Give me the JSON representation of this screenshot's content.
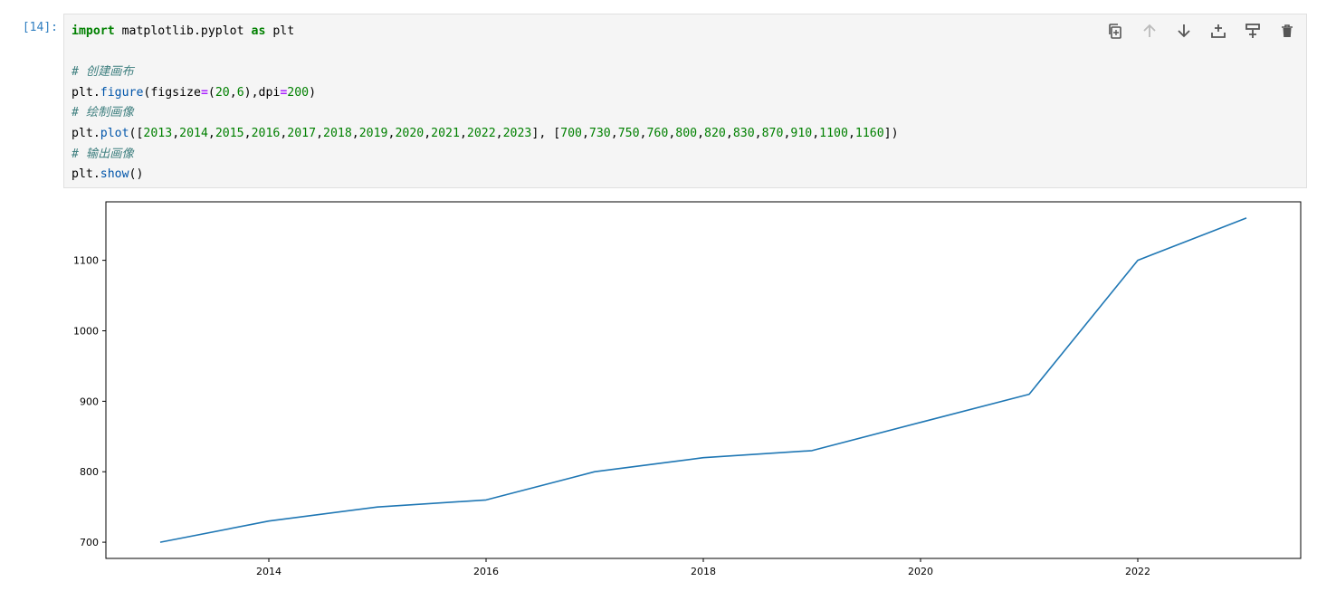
{
  "cell": {
    "prompt": "[14]:",
    "code_lines": [
      [
        {
          "t": "import",
          "c": "kw"
        },
        {
          "t": " matplotlib.pyplot "
        },
        {
          "t": "as",
          "c": "kw"
        },
        {
          "t": " plt"
        }
      ],
      [],
      [
        {
          "t": "# 创建画布",
          "c": "cm"
        }
      ],
      [
        {
          "t": "plt."
        },
        {
          "t": "figure",
          "c": "fn"
        },
        {
          "t": "(figsize"
        },
        {
          "t": "=",
          "c": "op"
        },
        {
          "t": "("
        },
        {
          "t": "20",
          "c": "num"
        },
        {
          "t": ","
        },
        {
          "t": "6",
          "c": "num"
        },
        {
          "t": "),dpi"
        },
        {
          "t": "=",
          "c": "op"
        },
        {
          "t": "200",
          "c": "num"
        },
        {
          "t": ")"
        }
      ],
      [
        {
          "t": "# 绘制画像",
          "c": "cm"
        }
      ],
      [
        {
          "t": "plt."
        },
        {
          "t": "plot",
          "c": "fn"
        },
        {
          "t": "(["
        },
        {
          "t": "2013",
          "c": "num"
        },
        {
          "t": ","
        },
        {
          "t": "2014",
          "c": "num"
        },
        {
          "t": ","
        },
        {
          "t": "2015",
          "c": "num"
        },
        {
          "t": ","
        },
        {
          "t": "2016",
          "c": "num"
        },
        {
          "t": ","
        },
        {
          "t": "2017",
          "c": "num"
        },
        {
          "t": ","
        },
        {
          "t": "2018",
          "c": "num"
        },
        {
          "t": ","
        },
        {
          "t": "2019",
          "c": "num"
        },
        {
          "t": ","
        },
        {
          "t": "2020",
          "c": "num"
        },
        {
          "t": ","
        },
        {
          "t": "2021",
          "c": "num"
        },
        {
          "t": ","
        },
        {
          "t": "2022",
          "c": "num"
        },
        {
          "t": ","
        },
        {
          "t": "2023",
          "c": "num"
        },
        {
          "t": "], ["
        },
        {
          "t": "700",
          "c": "num"
        },
        {
          "t": ","
        },
        {
          "t": "730",
          "c": "num"
        },
        {
          "t": ","
        },
        {
          "t": "750",
          "c": "num"
        },
        {
          "t": ","
        },
        {
          "t": "760",
          "c": "num"
        },
        {
          "t": ","
        },
        {
          "t": "800",
          "c": "num"
        },
        {
          "t": ","
        },
        {
          "t": "820",
          "c": "num"
        },
        {
          "t": ","
        },
        {
          "t": "830",
          "c": "num"
        },
        {
          "t": ","
        },
        {
          "t": "870",
          "c": "num"
        },
        {
          "t": ","
        },
        {
          "t": "910",
          "c": "num"
        },
        {
          "t": ","
        },
        {
          "t": "1100",
          "c": "num"
        },
        {
          "t": ","
        },
        {
          "t": "1160",
          "c": "num"
        },
        {
          "t": "])"
        }
      ],
      [
        {
          "t": "# 输出画像",
          "c": "cm"
        }
      ],
      [
        {
          "t": "plt."
        },
        {
          "t": "show",
          "c": "fn"
        },
        {
          "t": "()"
        }
      ]
    ],
    "toolbar": [
      {
        "name": "duplicate-cell-button",
        "icon": "copy-icon"
      },
      {
        "name": "move-up-button",
        "icon": "arrow-up-icon"
      },
      {
        "name": "move-down-button",
        "icon": "arrow-down-icon"
      },
      {
        "name": "insert-above-button",
        "icon": "insert-above-icon"
      },
      {
        "name": "insert-below-button",
        "icon": "insert-below-icon"
      },
      {
        "name": "delete-cell-button",
        "icon": "trash-icon"
      }
    ]
  },
  "colors": {
    "line": "#1f77b4",
    "prompt": "#307fc1"
  },
  "chart_data": {
    "type": "line",
    "x": [
      2013,
      2014,
      2015,
      2016,
      2017,
      2018,
      2019,
      2020,
      2021,
      2022,
      2023
    ],
    "series": [
      {
        "values": [
          700,
          730,
          750,
          760,
          800,
          820,
          830,
          870,
          910,
          1100,
          1160
        ]
      }
    ],
    "xticks": [
      2014,
      2016,
      2018,
      2020,
      2022
    ],
    "yticks": [
      700,
      800,
      900,
      1000,
      1100
    ],
    "xlim": [
      2012.5,
      2023.5
    ],
    "ylim": [
      677,
      1183
    ],
    "grid": false,
    "title": "",
    "xlabel": "",
    "ylabel": ""
  }
}
